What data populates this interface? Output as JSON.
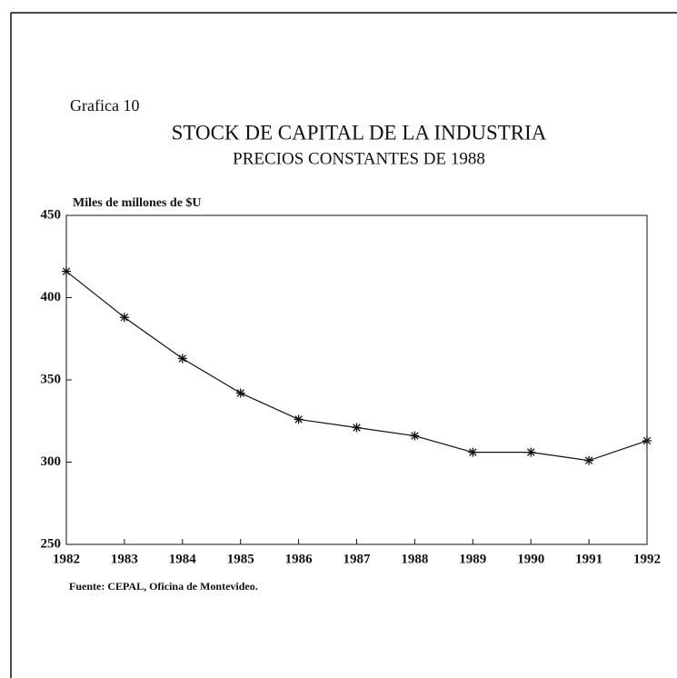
{
  "chart_data": {
    "type": "line",
    "label": "Grafica 10",
    "title": "STOCK DE CAPITAL DE LA INDUSTRIA",
    "subtitle": "PRECIOS CONSTANTES DE 1988",
    "y_label": "Miles de millones de $U",
    "source": "Fuente: CEPAL, Oficina de Montevideo.",
    "x": [
      1982,
      1983,
      1984,
      1985,
      1986,
      1987,
      1988,
      1989,
      1990,
      1991,
      1992
    ],
    "series": [
      {
        "name": "Stock de capital",
        "color": "#111111",
        "values": [
          416,
          388,
          363,
          342,
          326,
          321,
          316,
          306,
          306,
          301,
          313
        ]
      }
    ],
    "xlim": [
      1982,
      1992
    ],
    "xticks": [
      1982,
      1983,
      1984,
      1985,
      1986,
      1987,
      1988,
      1989,
      1990,
      1991,
      1992
    ],
    "ylim": [
      250,
      450
    ],
    "yticks": [
      250,
      300,
      350,
      400,
      450
    ]
  }
}
